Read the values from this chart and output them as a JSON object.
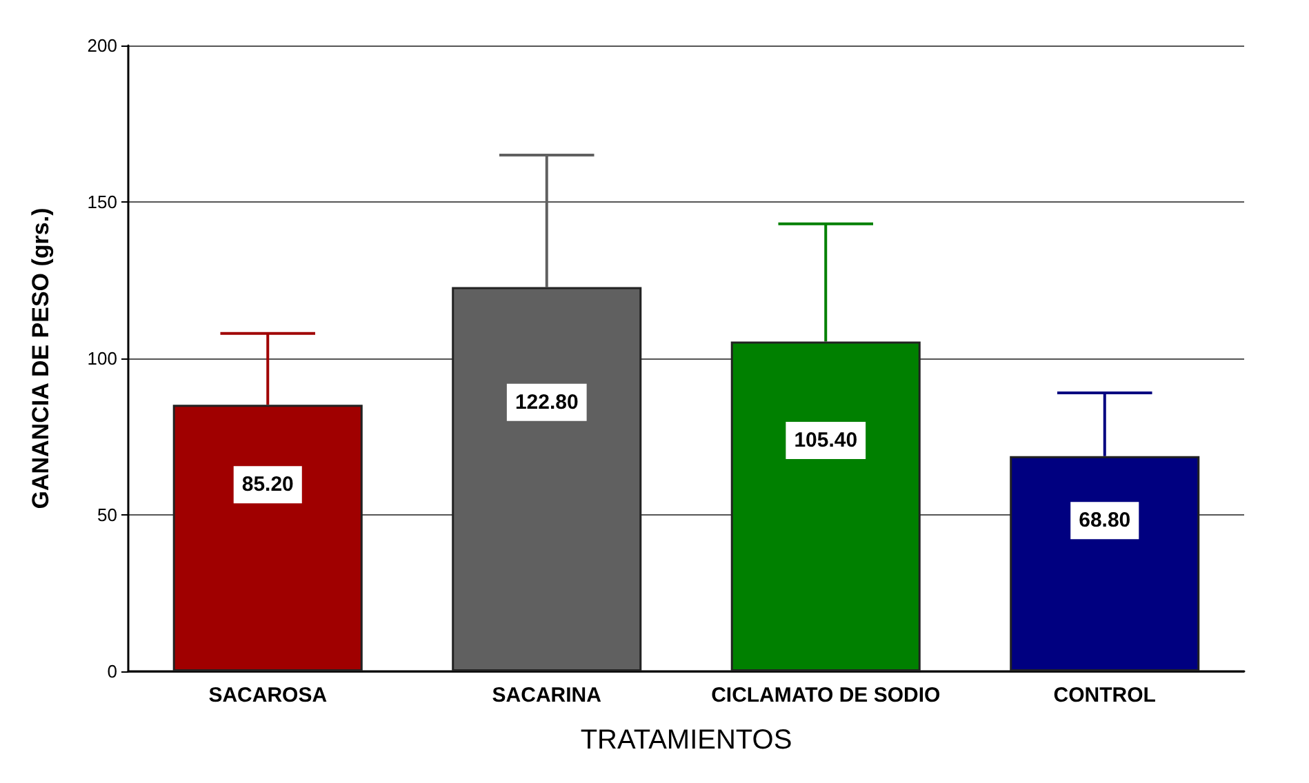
{
  "chart_data": {
    "type": "bar",
    "xlabel": "TRATAMIENTOS",
    "ylabel": "GANANCIA DE PESO (grs.)",
    "categories": [
      "SACAROSA",
      "SACARINA",
      "CICLAMATO DE SODIO",
      "CONTROL"
    ],
    "values": [
      85.2,
      122.8,
      105.4,
      68.8
    ],
    "colors": [
      "#a00000",
      "#606060",
      "#008000",
      "#000080"
    ],
    "errors": [
      [
        85.2,
        108
      ],
      [
        122.8,
        165
      ],
      [
        105.4,
        143
      ],
      [
        68.8,
        89
      ]
    ],
    "value_labels": [
      "85.20",
      "122.80",
      "105.40",
      "68.80"
    ],
    "ylim": [
      0,
      200
    ],
    "yticks": [
      0,
      50,
      100,
      150,
      200
    ],
    "grid": "y"
  }
}
